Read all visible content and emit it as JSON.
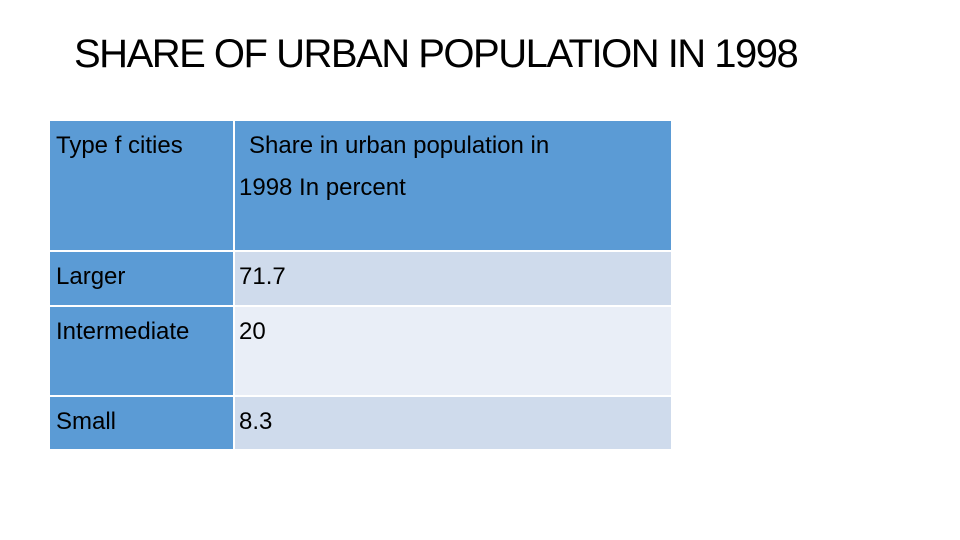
{
  "title": "SHARE OF URBAN POPULATION IN 1998",
  "table": {
    "header": {
      "type_label": "Type f cities",
      "share_label_line1": "Share in urban population in",
      "share_label_line2": "1998 In percent"
    },
    "rows": [
      {
        "type": "Larger",
        "share": "71.7"
      },
      {
        "type": "Intermediate",
        "share": "20"
      },
      {
        "type": "Small",
        "share": "8.3"
      }
    ]
  },
  "colors": {
    "header_fill": "#5b9bd5",
    "band_dark": "#cfdbec",
    "band_light": "#e9eef7"
  }
}
